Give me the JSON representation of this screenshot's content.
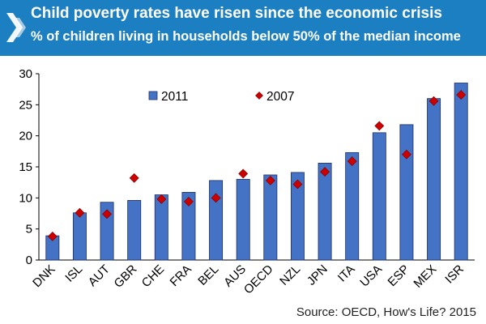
{
  "header": {
    "title": "Child poverty rates have risen since the economic crisis",
    "subtitle": "% of children living in households below 50% of the median income",
    "background_color": "#1c7fc2",
    "logo_icon": "oecd-chevron-logo-icon"
  },
  "chart_data": {
    "type": "bar",
    "categories": [
      "DNK",
      "ISL",
      "AUT",
      "GBR",
      "CHE",
      "FRA",
      "BEL",
      "AUS",
      "OECD",
      "NZL",
      "JPN",
      "ITA",
      "USA",
      "ESP",
      "MEX",
      "ISR"
    ],
    "series": [
      {
        "name": "2011",
        "type": "bar",
        "color": "#4472c4",
        "values": [
          3.9,
          7.6,
          9.3,
          9.6,
          10.5,
          10.9,
          12.8,
          13.0,
          13.7,
          14.1,
          15.6,
          17.3,
          20.5,
          21.8,
          26.0,
          28.5
        ]
      },
      {
        "name": "2007",
        "type": "scatter",
        "marker": "diamond",
        "color": "#cc0000",
        "values": [
          3.8,
          7.6,
          7.4,
          13.2,
          9.8,
          9.4,
          10.0,
          13.9,
          12.8,
          12.2,
          14.2,
          15.9,
          21.6,
          17.0,
          25.6,
          26.6
        ]
      }
    ],
    "xlabel": "",
    "ylabel": "",
    "ylim": [
      0,
      30
    ],
    "yticks": [
      0,
      5,
      10,
      15,
      20,
      25,
      30
    ],
    "grid": false,
    "legend_position": "top-left"
  },
  "footer": {
    "source": "Source: OECD, How's Life? 2015"
  }
}
